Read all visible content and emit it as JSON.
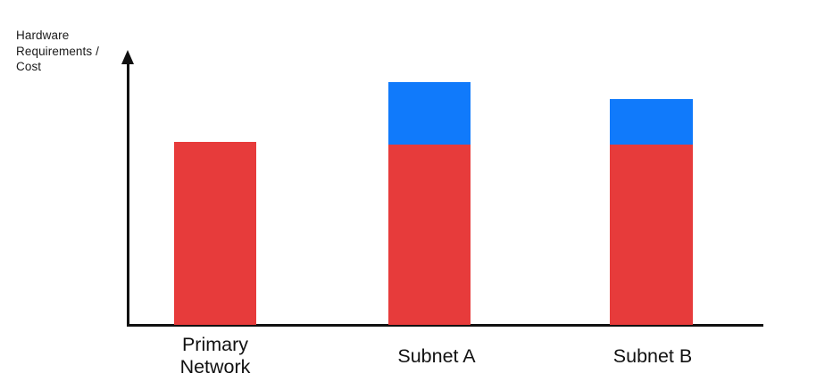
{
  "chart_data": {
    "type": "bar",
    "stacked": true,
    "title": "",
    "xlabel": "",
    "ylabel": "Hardware Requirements / Cost",
    "ylabel_lines": [
      "Hardware",
      "Requirements /",
      "Cost"
    ],
    "categories": [
      "Primary Network",
      "Subnet A",
      "Subnet B"
    ],
    "series": [
      {
        "name": "red",
        "color": "#E73B3B",
        "values": [
          205,
          202,
          202
        ]
      },
      {
        "name": "blue",
        "color": "#107AFB",
        "values": [
          0,
          70,
          51
        ]
      }
    ],
    "value_unit": "relative (no numeric scale shown)",
    "ylim": [
      0,
      306
    ],
    "grid": false,
    "legend": "none",
    "axis_ticks": "none",
    "axis_style": "black arrows, y-axis arrow pointing up"
  },
  "colors": {
    "background": "#ffffff",
    "axis": "#111111",
    "text": "#1a1a1a",
    "bar_red": "#E73B3B",
    "bar_blue": "#107AFB"
  }
}
